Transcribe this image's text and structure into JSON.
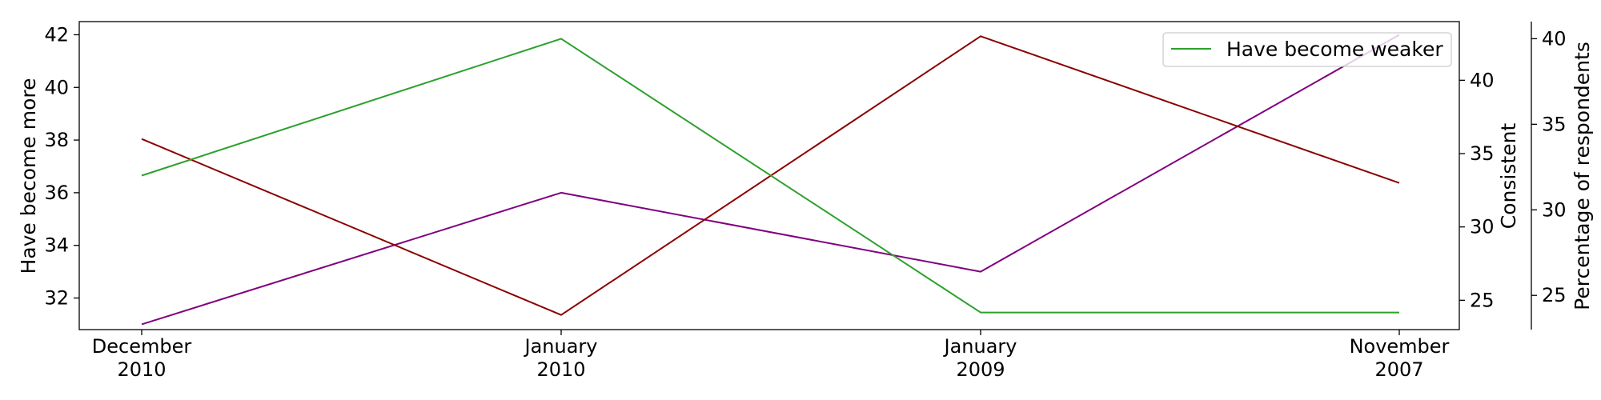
{
  "chart_data": {
    "type": "line",
    "categories": [
      "December 2010",
      "January 2010",
      "January 2009",
      "November 2007"
    ],
    "category_lines": [
      [
        "December",
        "2010"
      ],
      [
        "January",
        "2010"
      ],
      [
        "January",
        "2009"
      ],
      [
        "November",
        "2007"
      ]
    ],
    "axes": {
      "left": {
        "label": "Have become more",
        "ylim": [
          30.8,
          42.5
        ],
        "ticks": [
          32,
          34,
          36,
          38,
          40,
          42
        ]
      },
      "right1": {
        "label": "Consistent",
        "ylim": [
          23.0,
          44.0
        ],
        "ticks": [
          25,
          30,
          35,
          40
        ]
      },
      "right2": {
        "label": "Percentage of respondents",
        "ylim": [
          23.0,
          41.0
        ],
        "ticks": [
          25,
          30,
          35,
          40
        ]
      }
    },
    "series": [
      {
        "name": "Have become more",
        "axis": "left",
        "color": "#800080",
        "values": [
          31,
          36,
          33,
          42
        ],
        "in_legend": false
      },
      {
        "name": "Consistent",
        "axis": "right1",
        "color": "#8b0000",
        "values": [
          36,
          24,
          43,
          33
        ],
        "in_legend": false
      },
      {
        "name": "Have become weaker",
        "axis": "right2",
        "color": "#2ca02c",
        "values": [
          32,
          40,
          24,
          24
        ],
        "in_legend": true
      }
    ],
    "legend": {
      "entries": [
        "Have become weaker"
      ],
      "placement": "top-right"
    },
    "grid": false
  }
}
